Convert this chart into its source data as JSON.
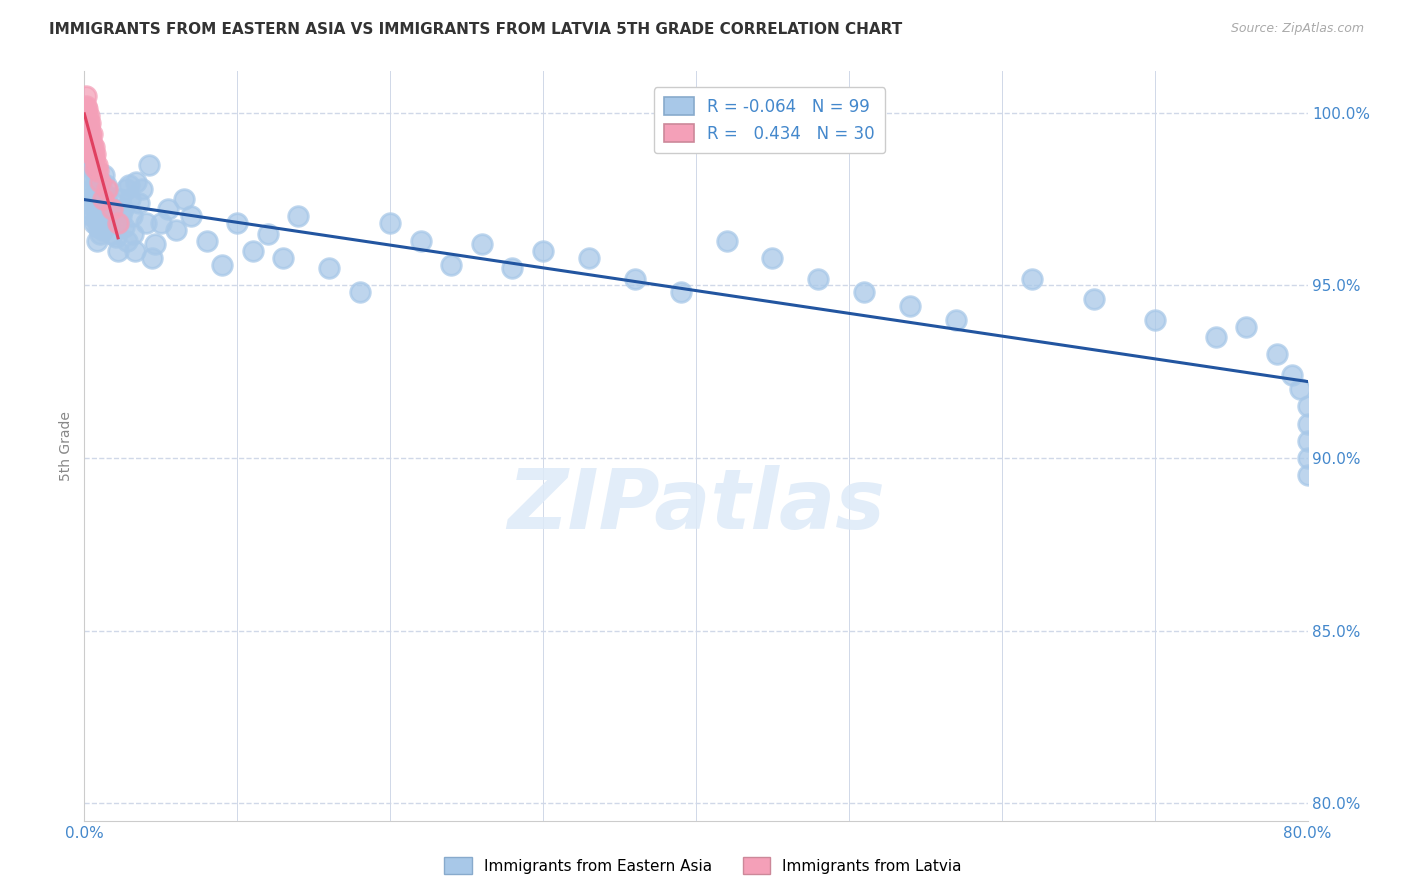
{
  "title": "IMMIGRANTS FROM EASTERN ASIA VS IMMIGRANTS FROM LATVIA 5TH GRADE CORRELATION CHART",
  "source": "Source: ZipAtlas.com",
  "xlabel_blue": "Immigrants from Eastern Asia",
  "xlabel_pink": "Immigrants from Latvia",
  "ylabel": "5th Grade",
  "watermark": "ZIPatlas",
  "blue_R": -0.064,
  "blue_N": 99,
  "pink_R": 0.434,
  "pink_N": 30,
  "xlim": [
    0.0,
    0.8
  ],
  "ylim": [
    0.795,
    1.012
  ],
  "yticks": [
    0.8,
    0.85,
    0.9,
    0.95,
    1.0
  ],
  "ytick_labels": [
    "80.0%",
    "85.0%",
    "90.0%",
    "95.0%",
    "100.0%"
  ],
  "xticks": [
    0.0,
    0.1,
    0.2,
    0.3,
    0.4,
    0.5,
    0.6,
    0.7,
    0.8
  ],
  "xtick_labels": [
    "0.0%",
    "",
    "",
    "",
    "",
    "",
    "",
    "",
    "80.0%"
  ],
  "blue_color": "#a8c8e8",
  "pink_color": "#f4a0b8",
  "blue_line_color": "#2255a0",
  "pink_line_color": "#e04060",
  "grid_color": "#d0d8e8",
  "title_color": "#333333",
  "axis_label_color": "#4488cc",
  "bg_color": "#ffffff",
  "blue_x": [
    0.001,
    0.002,
    0.002,
    0.003,
    0.003,
    0.003,
    0.004,
    0.004,
    0.004,
    0.005,
    0.005,
    0.005,
    0.006,
    0.006,
    0.006,
    0.007,
    0.007,
    0.008,
    0.008,
    0.008,
    0.009,
    0.009,
    0.01,
    0.01,
    0.011,
    0.011,
    0.012,
    0.012,
    0.013,
    0.014,
    0.015,
    0.015,
    0.016,
    0.017,
    0.018,
    0.019,
    0.02,
    0.021,
    0.022,
    0.023,
    0.024,
    0.025,
    0.026,
    0.027,
    0.028,
    0.029,
    0.03,
    0.031,
    0.032,
    0.033,
    0.034,
    0.036,
    0.038,
    0.04,
    0.042,
    0.044,
    0.046,
    0.05,
    0.055,
    0.06,
    0.065,
    0.07,
    0.08,
    0.09,
    0.1,
    0.11,
    0.12,
    0.13,
    0.14,
    0.16,
    0.18,
    0.2,
    0.22,
    0.24,
    0.26,
    0.28,
    0.3,
    0.33,
    0.36,
    0.39,
    0.42,
    0.45,
    0.48,
    0.51,
    0.54,
    0.57,
    0.62,
    0.66,
    0.7,
    0.74,
    0.76,
    0.78,
    0.79,
    0.795,
    0.8,
    0.8,
    0.8,
    0.8,
    0.8
  ],
  "blue_y": [
    0.988,
    0.993,
    0.996,
    0.985,
    0.99,
    0.975,
    0.98,
    0.987,
    0.972,
    0.984,
    0.978,
    0.97,
    0.983,
    0.975,
    0.968,
    0.98,
    0.972,
    0.977,
    0.969,
    0.963,
    0.975,
    0.967,
    0.973,
    0.965,
    0.98,
    0.97,
    0.974,
    0.966,
    0.982,
    0.979,
    0.976,
    0.968,
    0.973,
    0.969,
    0.965,
    0.972,
    0.968,
    0.964,
    0.96,
    0.975,
    0.97,
    0.972,
    0.967,
    0.978,
    0.963,
    0.979,
    0.975,
    0.97,
    0.965,
    0.96,
    0.98,
    0.974,
    0.978,
    0.968,
    0.985,
    0.958,
    0.962,
    0.968,
    0.972,
    0.966,
    0.975,
    0.97,
    0.963,
    0.956,
    0.968,
    0.96,
    0.965,
    0.958,
    0.97,
    0.955,
    0.948,
    0.968,
    0.963,
    0.956,
    0.962,
    0.955,
    0.96,
    0.958,
    0.952,
    0.948,
    0.963,
    0.958,
    0.952,
    0.948,
    0.944,
    0.94,
    0.952,
    0.946,
    0.94,
    0.935,
    0.938,
    0.93,
    0.924,
    0.92,
    0.915,
    0.91,
    0.905,
    0.9,
    0.895
  ],
  "pink_x": [
    0.001,
    0.001,
    0.001,
    0.001,
    0.001,
    0.002,
    0.002,
    0.002,
    0.002,
    0.003,
    0.003,
    0.003,
    0.003,
    0.004,
    0.004,
    0.004,
    0.005,
    0.005,
    0.005,
    0.006,
    0.006,
    0.007,
    0.007,
    0.008,
    0.009,
    0.01,
    0.012,
    0.015,
    0.018,
    0.022
  ],
  "pink_y": [
    1.005,
    1.002,
    1.0,
    0.998,
    0.996,
    1.001,
    0.998,
    0.995,
    0.992,
    0.999,
    0.996,
    0.993,
    0.99,
    0.997,
    0.994,
    0.991,
    0.994,
    0.991,
    0.988,
    0.99,
    0.987,
    0.988,
    0.984,
    0.985,
    0.983,
    0.98,
    0.975,
    0.978,
    0.972,
    0.968
  ]
}
